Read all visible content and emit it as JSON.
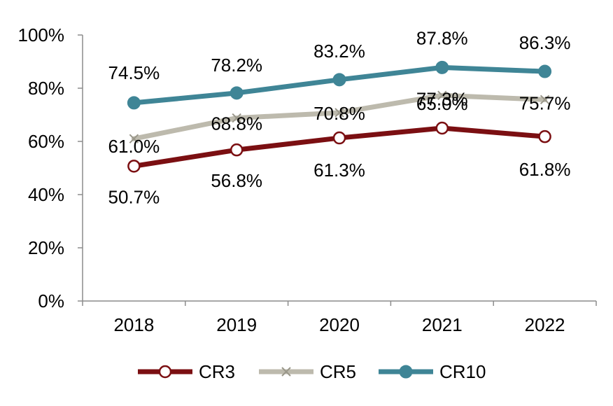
{
  "chart_data": {
    "type": "line",
    "title": "",
    "xlabel": "",
    "ylabel": "",
    "categories": [
      "2018",
      "2019",
      "2020",
      "2021",
      "2022"
    ],
    "ylim": [
      0,
      100
    ],
    "yticks": [
      "0%",
      "20%",
      "40%",
      "60%",
      "80%",
      "100%"
    ],
    "grid": false,
    "legend_position": "bottom",
    "series": [
      {
        "name": "CR3",
        "values": [
          50.7,
          56.8,
          61.3,
          65.0,
          61.8
        ],
        "labels": [
          "50.7%",
          "56.8%",
          "61.3%",
          "65.0%",
          "61.8%"
        ],
        "color": "#7b0f12",
        "marker": "open-circle"
      },
      {
        "name": "CR5",
        "values": [
          61.0,
          68.8,
          70.8,
          77.3,
          75.7
        ],
        "labels": [
          "61.0%",
          "68.8%",
          "70.8%",
          "77.3%",
          "75.7%"
        ],
        "color": "#bdbaad",
        "marker": "x"
      },
      {
        "name": "CR10",
        "values": [
          74.5,
          78.2,
          83.2,
          87.8,
          86.3
        ],
        "labels": [
          "74.5%",
          "78.2%",
          "83.2%",
          "87.8%",
          "86.3%"
        ],
        "color": "#3f8596",
        "marker": "filled-circle"
      }
    ]
  }
}
